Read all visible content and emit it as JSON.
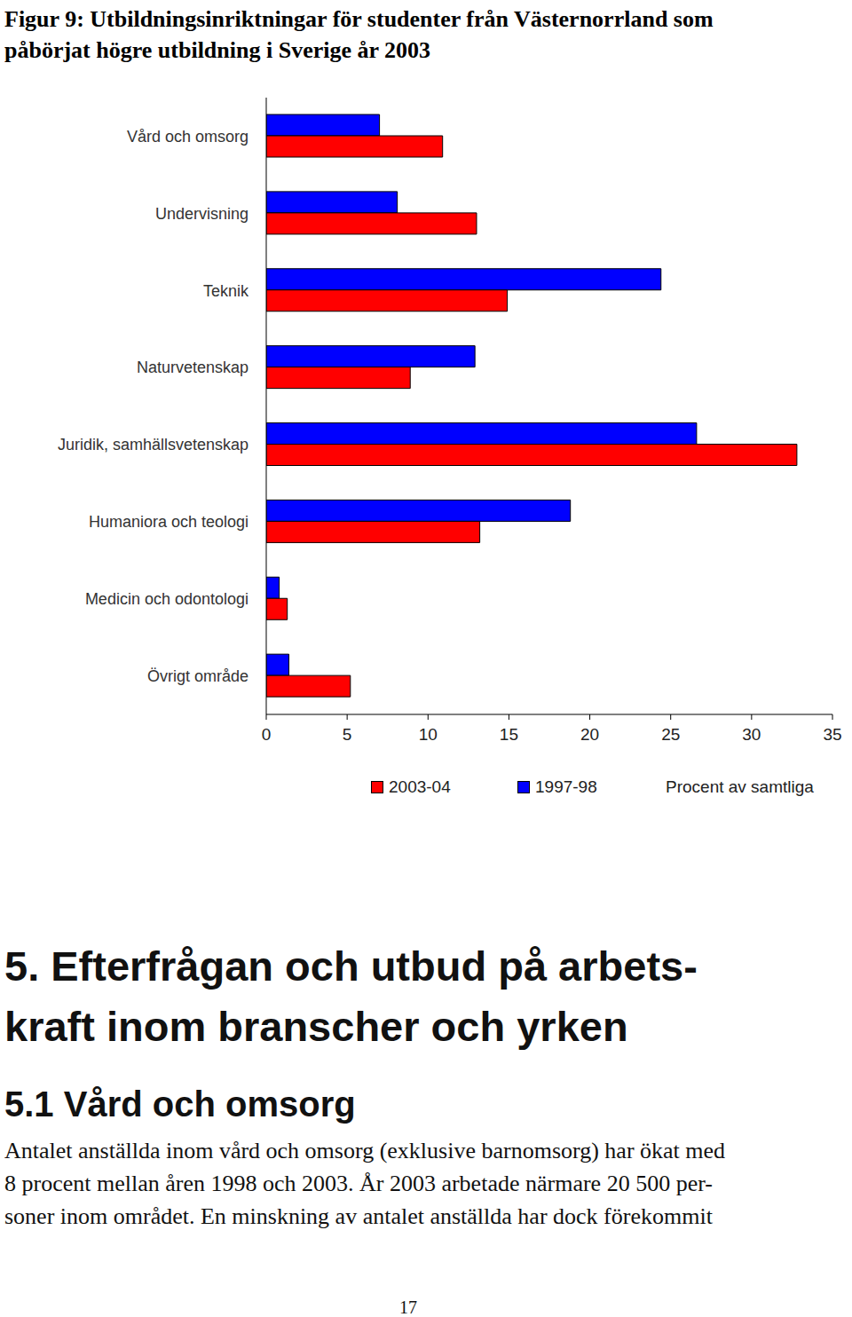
{
  "figure_title": [
    "Figur 9: Utbildningsinriktningar för studenter från Västernorrland som",
    "påbörjat högre utbildning i Sverige år 2003"
  ],
  "chart_data": {
    "type": "bar",
    "orientation": "horizontal",
    "categories": [
      "Vård och omsorg",
      "Undervisning",
      "Teknik",
      "Naturvetenskap",
      "Juridik, samhällsvetenskap",
      "Humaniora och teologi",
      "Medicin och odontologi",
      "Övrigt område"
    ],
    "series": [
      {
        "name": "2003-04",
        "color": "#ff0000",
        "values": [
          10.9,
          13.0,
          14.9,
          8.9,
          32.8,
          13.2,
          1.3,
          5.2
        ]
      },
      {
        "name": "1997-98",
        "color": "#0000ff",
        "values": [
          7.0,
          8.1,
          24.4,
          12.9,
          26.6,
          18.8,
          0.8,
          1.4
        ]
      }
    ],
    "x_label": "Procent av samtliga",
    "xlim": [
      0,
      35
    ],
    "xticks": [
      0,
      5,
      10,
      15,
      20,
      25,
      30,
      35
    ],
    "grid": false
  },
  "heading": [
    "5. Efterfrågan och utbud på arbets-",
    "kraft inom branscher och yrken"
  ],
  "subheading": "5.1 Vård och omsorg",
  "paragraph": [
    "Antalet anställda inom vård och omsorg (exklusive barnomsorg) har ökat med",
    "8 procent mellan åren 1998 och 2003. År 2003 arbetade närmare 20 500 per-",
    "soner inom området. En minskning av antalet anställda har dock förekommit"
  ],
  "page_number": 17
}
